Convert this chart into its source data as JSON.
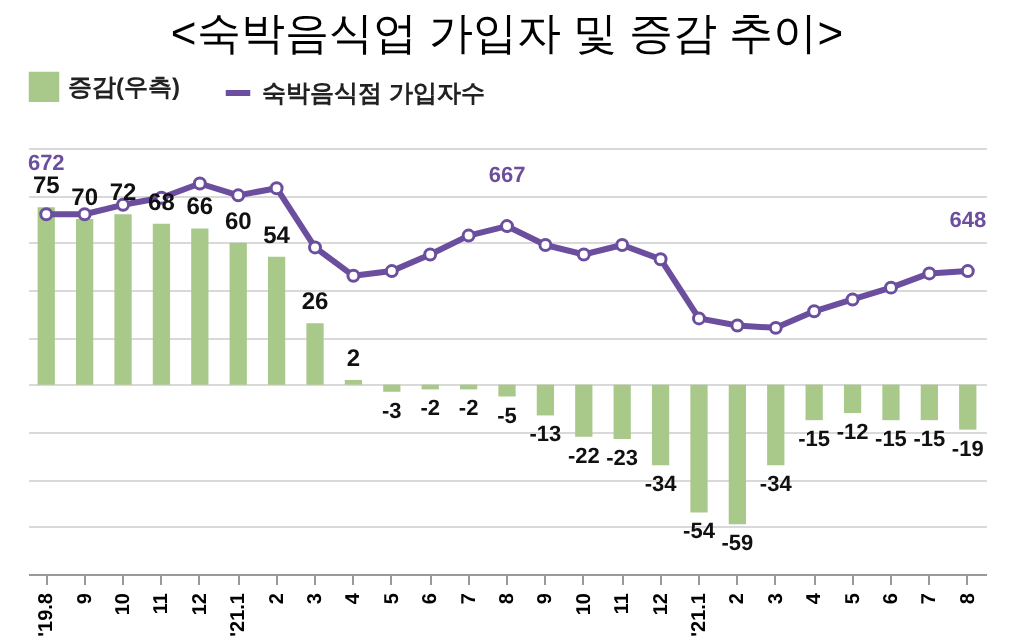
{
  "chart_data": {
    "type": "bar",
    "title": "<숙박음식업 가입자 및 증감 추이>",
    "categories": [
      "'19.8",
      "9",
      "10",
      "11",
      "12",
      "'21.1",
      "2",
      "3",
      "4",
      "5",
      "6",
      "7",
      "8",
      "9",
      "10",
      "11",
      "12",
      "'21.1",
      "2",
      "3",
      "4",
      "5",
      "6",
      "7",
      "8"
    ],
    "series": [
      {
        "name": "증감(우측)",
        "axis": "y2",
        "color": "#a9c98a",
        "values": [
          75,
          70,
          72,
          68,
          66,
          60,
          54,
          26,
          2,
          -3,
          -2,
          -2,
          -5,
          -13,
          -22,
          -23,
          -34,
          -54,
          -59,
          -34,
          -15,
          -12,
          -15,
          -15,
          -19
        ],
        "value_labels": [
          "75",
          "70",
          "72",
          "68",
          "66",
          "60",
          "54",
          "26",
          "2",
          "-3",
          "-2",
          "-2",
          "-5",
          "-13",
          "-22",
          "-23",
          "-34",
          "-54",
          "-59",
          "-34",
          "-15",
          "-12",
          "-15",
          "-15",
          "-19"
        ]
      },
      {
        "name": "숙박음식점 가입자수",
        "type": "line",
        "color": "#6b4f9e",
        "marker": "circle",
        "values": [
          672,
          672,
          676,
          679,
          685,
          680,
          683,
          658,
          646,
          648,
          655,
          663,
          667,
          659,
          655,
          659,
          653,
          628,
          625,
          624,
          631,
          636,
          641,
          647,
          648
        ],
        "value_labels": [
          "672",
          null,
          null,
          null,
          null,
          null,
          null,
          null,
          null,
          null,
          null,
          null,
          "667",
          null,
          null,
          null,
          null,
          null,
          null,
          null,
          null,
          null,
          null,
          null,
          "648"
        ]
      }
    ],
    "ylim": [
      520,
      700
    ],
    "yticks": [
      520,
      540,
      560,
      580,
      600,
      620,
      640,
      660,
      680,
      700
    ],
    "y2lim": [
      -80,
      100
    ],
    "tick_labels": "x",
    "grid": "y",
    "legend": "top"
  }
}
